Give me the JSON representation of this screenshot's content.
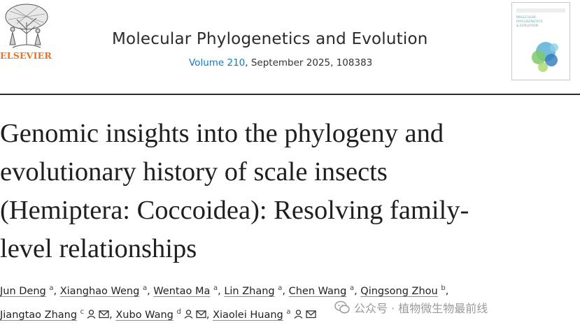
{
  "publisher": {
    "name": "ELSEVIER"
  },
  "journal": {
    "title": "Molecular Phylogenetics and Evolution",
    "volume_link": "Volume 210",
    "issue_info": ", September 2025, 108383"
  },
  "cover": {
    "lines": [
      "MOLECULAR",
      "PHYLOGENETICS",
      "& EVOLUTION"
    ]
  },
  "article": {
    "title_lines": [
      "Genomic insights into the phylogeny and",
      "evolutionary history of scale insects",
      "(Hemiptera: Coccoidea): Resolving family-",
      "level relationships"
    ]
  },
  "authors": [
    {
      "name": "Jun Deng",
      "aff": "a"
    },
    {
      "name": "Xianghao Weng",
      "aff": "a"
    },
    {
      "name": "Wentao Ma",
      "aff": "a"
    },
    {
      "name": "Lin Zhang",
      "aff": "a"
    },
    {
      "name": "Chen Wang",
      "aff": "a"
    },
    {
      "name": "Qingsong Zhou",
      "aff": "b"
    },
    {
      "name": "Jiangtao Zhang",
      "aff": "c"
    },
    {
      "name": "Xubo Wang",
      "aff": "d"
    },
    {
      "name": "Xiaolei Huang",
      "aff": "a"
    }
  ],
  "watermark": {
    "text": "公众号 · 植物微生物最前线"
  },
  "colors": {
    "elsevier_orange": "#e9711c",
    "link_blue": "#0c7dbb",
    "rule": "#2b2b2b"
  },
  "icons": [
    "person-icon",
    "envelope-icon",
    "wechat-logo-icon",
    "elsevier-tree-logo"
  ]
}
